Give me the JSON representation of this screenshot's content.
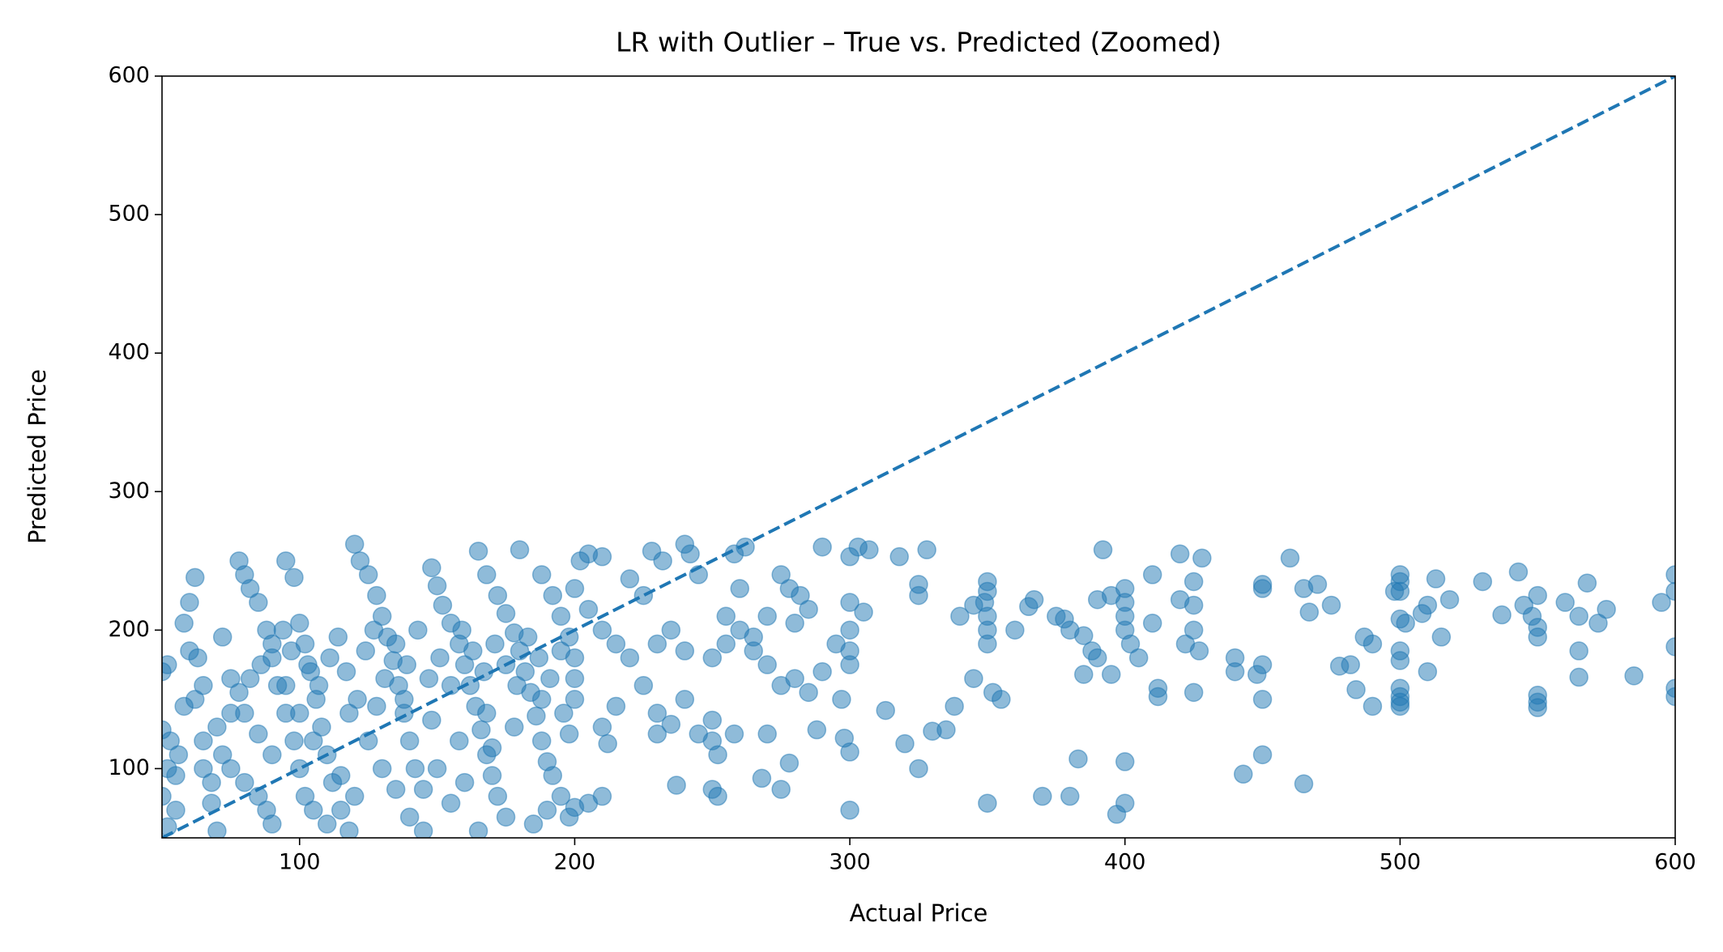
{
  "chart_data": {
    "type": "scatter",
    "title": "LR with Outlier – True vs. Predicted (Zoomed)",
    "x_label": "Actual Price",
    "y_label": "Predicted Price",
    "color": "#1f77b4",
    "alpha": 0.5,
    "xlim": [
      50,
      600
    ],
    "ylim": [
      50,
      600
    ],
    "xticks": [
      100,
      200,
      300,
      400,
      500,
      600
    ],
    "yticks": [
      100,
      200,
      300,
      400,
      500,
      600
    ],
    "x": [
      52,
      50,
      50,
      52,
      55,
      50,
      55,
      52,
      58,
      60,
      62,
      58,
      60,
      62,
      65,
      65,
      68,
      70,
      72,
      75,
      78,
      80,
      82,
      85,
      88,
      90,
      92,
      95,
      98,
      100,
      102,
      105,
      95,
      98,
      100,
      102,
      104,
      106,
      108,
      110,
      112,
      115,
      118,
      120,
      122,
      125,
      128,
      130,
      132,
      134,
      136,
      138,
      140,
      142,
      145,
      148,
      150,
      152,
      155,
      158,
      160,
      162,
      164,
      166,
      168,
      170,
      172,
      175,
      165,
      168,
      172,
      175,
      178,
      180,
      182,
      184,
      186,
      188,
      190,
      185,
      180,
      188,
      192,
      195,
      198,
      200,
      200,
      200,
      196,
      198,
      75,
      80,
      85,
      88,
      90,
      70,
      75,
      78,
      82,
      86,
      90,
      94,
      97,
      103,
      107,
      111,
      114,
      117,
      121,
      124,
      127,
      131,
      135,
      139,
      143,
      147,
      151,
      155,
      159,
      163,
      167,
      171,
      175,
      179,
      183,
      187,
      191,
      195,
      125,
      130,
      135,
      140,
      145,
      120,
      115,
      110,
      105,
      100,
      95,
      90,
      85,
      80,
      72,
      68,
      65,
      63,
      56,
      53,
      118,
      128,
      138,
      148,
      158,
      168,
      178,
      188,
      150,
      160,
      170,
      155,
      165,
      195,
      190,
      192,
      205,
      210,
      202,
      200,
      205,
      210,
      215,
      220,
      225,
      230,
      230,
      235,
      240,
      245,
      250,
      252,
      250,
      258,
      250,
      252,
      237,
      268,
      275,
      270,
      278,
      288,
      250,
      255,
      260,
      265,
      270,
      275,
      280,
      285,
      290,
      255,
      260,
      258,
      262,
      245,
      242,
      240,
      232,
      228,
      275,
      278,
      282,
      285,
      280,
      270,
      265,
      230,
      235,
      240,
      215,
      210,
      212,
      205,
      210,
      200,
      198,
      220,
      225,
      300,
      350,
      370,
      380,
      397,
      400,
      400,
      383,
      443,
      450,
      465,
      460,
      420,
      428,
      392,
      350,
      350,
      349,
      350,
      350,
      350,
      345,
      352,
      355,
      338,
      325,
      330,
      335,
      320,
      313,
      300,
      298,
      297,
      305,
      300,
      300,
      300,
      300,
      295,
      290,
      303,
      307,
      300,
      318,
      328,
      325,
      325,
      340,
      345,
      360,
      365,
      367,
      375,
      378,
      380,
      385,
      390,
      395,
      400,
      400,
      400,
      400,
      402,
      410,
      405,
      410,
      420,
      422,
      425,
      425,
      425,
      427,
      425,
      412,
      412,
      388,
      385,
      390,
      395,
      440,
      440,
      448,
      450,
      450,
      450,
      450,
      465,
      467,
      470,
      475,
      478,
      482,
      484,
      487,
      490,
      490,
      498,
      500,
      500,
      500,
      500,
      502,
      500,
      500,
      500,
      500,
      500,
      500,
      508,
      510,
      510,
      513,
      515,
      518,
      530,
      537,
      543,
      545,
      548,
      550,
      550,
      550,
      550,
      550,
      550,
      560,
      565,
      565,
      565,
      568,
      572,
      575,
      585,
      595,
      600,
      600,
      600,
      600,
      600
    ],
    "values": [
      175,
      170,
      128,
      100,
      95,
      80,
      70,
      58,
      145,
      220,
      238,
      205,
      185,
      150,
      120,
      100,
      75,
      55,
      195,
      165,
      250,
      240,
      230,
      220,
      200,
      180,
      160,
      140,
      120,
      100,
      80,
      70,
      250,
      238,
      205,
      190,
      170,
      150,
      130,
      110,
      90,
      70,
      55,
      262,
      250,
      240,
      225,
      210,
      195,
      178,
      160,
      140,
      120,
      100,
      85,
      245,
      232,
      218,
      205,
      190,
      175,
      160,
      145,
      128,
      110,
      95,
      80,
      65,
      257,
      240,
      225,
      212,
      198,
      185,
      170,
      155,
      138,
      120,
      105,
      60,
      258,
      240,
      225,
      210,
      195,
      180,
      165,
      150,
      140,
      125,
      100,
      90,
      80,
      70,
      60,
      130,
      140,
      155,
      165,
      175,
      190,
      200,
      185,
      175,
      160,
      180,
      195,
      170,
      150,
      185,
      200,
      165,
      190,
      175,
      200,
      165,
      180,
      160,
      200,
      185,
      170,
      190,
      175,
      160,
      195,
      180,
      165,
      185,
      120,
      100,
      85,
      65,
      55,
      80,
      95,
      60,
      120,
      140,
      160,
      110,
      125,
      140,
      110,
      90,
      160,
      180,
      110,
      120,
      140,
      145,
      150,
      135,
      120,
      140,
      130,
      150,
      100,
      90,
      115,
      75,
      55,
      80,
      70,
      95,
      255,
      253,
      250,
      230,
      215,
      200,
      190,
      180,
      160,
      140,
      125,
      132,
      150,
      125,
      135,
      110,
      120,
      125,
      85,
      80,
      88,
      93,
      85,
      125,
      104,
      128,
      180,
      190,
      200,
      185,
      175,
      160,
      165,
      155,
      170,
      210,
      230,
      255,
      260,
      240,
      255,
      262,
      250,
      257,
      240,
      230,
      225,
      215,
      205,
      210,
      195,
      190,
      200,
      185,
      145,
      130,
      118,
      75,
      80,
      72,
      65,
      237,
      225,
      70,
      75,
      80,
      80,
      67,
      75,
      105,
      107,
      96,
      110,
      89,
      252,
      255,
      252,
      258,
      235,
      228,
      220,
      210,
      200,
      190,
      165,
      155,
      150,
      145,
      100,
      127,
      128,
      118,
      142,
      112,
      122,
      150,
      213,
      220,
      200,
      185,
      175,
      190,
      260,
      260,
      258,
      253,
      253,
      258,
      233,
      225,
      210,
      218,
      200,
      217,
      222,
      210,
      208,
      200,
      196,
      222,
      225,
      230,
      220,
      210,
      200,
      190,
      205,
      180,
      240,
      222,
      190,
      235,
      218,
      200,
      185,
      155,
      158,
      152,
      185,
      168,
      180,
      168,
      170,
      180,
      168,
      175,
      150,
      233,
      230,
      230,
      213,
      233,
      218,
      174,
      175,
      157,
      195,
      190,
      145,
      228,
      240,
      235,
      228,
      208,
      205,
      185,
      178,
      158,
      152,
      148,
      145,
      212,
      218,
      170,
      237,
      195,
      222,
      235,
      211,
      242,
      218,
      210,
      225,
      202,
      195,
      153,
      148,
      144,
      220,
      210,
      185,
      166,
      234,
      205,
      215,
      167,
      220,
      240,
      228,
      188,
      158,
      152
    ],
    "reference_line": {
      "x": [
        50,
        600
      ],
      "values": [
        50,
        600
      ],
      "style": "dashed"
    }
  }
}
